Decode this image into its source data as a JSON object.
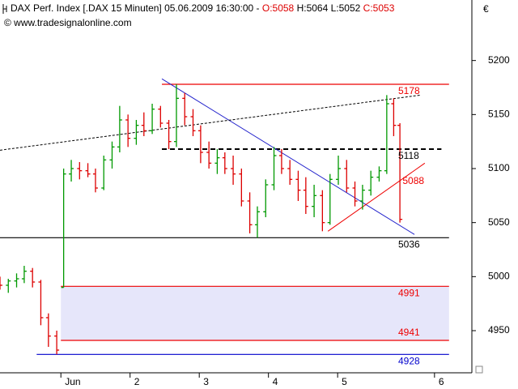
{
  "chart_data": {
    "type": "ohlc",
    "header": {
      "name": "DAX Perf. Index [.DAX  15 Minuten] 05.06.2009 16:30:00 - ",
      "open": "O:5058",
      "high": "H:5064",
      "low": "L:5052",
      "close": "C:5053"
    },
    "source": "© www.tradesignalonline.com",
    "currency": "€",
    "xlim": [
      0.12,
      6.94
    ],
    "xticks": [
      {
        "value": 1,
        "label": "Jun"
      },
      2,
      3,
      4,
      5,
      {
        "value": 6.4,
        "label": "6"
      }
    ],
    "ylim": [
      4911,
      5256
    ],
    "yticks": [
      4950,
      5000,
      5050,
      5100,
      5150,
      5200
    ],
    "up_color": "#009900",
    "down_color": "#dd0000",
    "x": [
      0.12,
      0.24,
      0.36,
      0.47,
      0.59,
      0.71,
      0.82,
      0.94,
      1.04,
      1.15,
      1.27,
      1.39,
      1.5,
      1.62,
      1.74,
      1.85,
      1.97,
      2.09,
      2.2,
      2.32,
      2.44,
      2.56,
      2.67,
      2.79,
      2.91,
      3.02,
      3.14,
      3.26,
      3.37,
      3.49,
      3.61,
      3.73,
      3.84,
      3.96,
      4.08,
      4.19,
      4.31,
      4.43,
      4.54,
      4.66,
      4.78,
      4.89,
      5.01,
      5.13,
      5.25,
      5.36,
      5.48,
      5.6,
      5.71,
      5.81,
      5.9
    ],
    "open": [
      4995,
      4992,
      4996,
      4998,
      5005,
      4995,
      4962,
      4945,
      4990,
      5095,
      5100,
      5098,
      5095,
      5082,
      5108,
      5120,
      5145,
      5128,
      5140,
      5135,
      5155,
      5142,
      5125,
      5165,
      5148,
      5135,
      5115,
      5105,
      5110,
      5100,
      5095,
      5070,
      5048,
      5060,
      5085,
      5112,
      5100,
      5090,
      5080,
      5065,
      5075,
      5050,
      5090,
      5100,
      5082,
      5070,
      5080,
      5092,
      5098,
      5160,
      5140
    ],
    "high": [
      5000,
      4998,
      5003,
      5010,
      5008,
      4997,
      4966,
      4950,
      5100,
      5108,
      5106,
      5105,
      5100,
      5112,
      5125,
      5158,
      5150,
      5145,
      5152,
      5160,
      5158,
      5145,
      5178,
      5170,
      5155,
      5140,
      5125,
      5118,
      5115,
      5112,
      5100,
      5078,
      5065,
      5090,
      5120,
      5118,
      5108,
      5098,
      5092,
      5085,
      5080,
      5095,
      5112,
      5108,
      5088,
      5085,
      5098,
      5102,
      5168,
      5165,
      5142
    ],
    "low": [
      4988,
      4985,
      4990,
      4994,
      4990,
      4955,
      4935,
      4928,
      4990,
      5088,
      5090,
      5092,
      5078,
      5080,
      5100,
      5115,
      5120,
      5122,
      5130,
      5132,
      5138,
      5118,
      5120,
      5140,
      5130,
      5105,
      5100,
      5095,
      5095,
      5085,
      5065,
      5040,
      5036,
      5055,
      5080,
      5095,
      5085,
      5070,
      5058,
      5055,
      5042,
      5048,
      5085,
      5078,
      5065,
      5062,
      5075,
      5088,
      5095,
      5130,
      5050
    ],
    "close": [
      4992,
      4996,
      4998,
      5005,
      4995,
      4962,
      4945,
      4932,
      5095,
      5100,
      5098,
      5095,
      5082,
      5108,
      5120,
      5145,
      5128,
      5140,
      5135,
      5155,
      5142,
      5125,
      5165,
      5148,
      5135,
      5115,
      5105,
      5110,
      5100,
      5095,
      5070,
      5048,
      5060,
      5085,
      5112,
      5100,
      5090,
      5080,
      5065,
      5075,
      5050,
      5090,
      5100,
      5082,
      5070,
      5080,
      5092,
      5098,
      5160,
      5140,
      5053
    ],
    "band": {
      "x": [
        1,
        6.61
      ],
      "y": [
        4941,
        4991
      ],
      "color": "#e6e6fa"
    },
    "levels": [
      {
        "value": 5178,
        "x": [
          2.46,
          6.61
        ],
        "color": "#ee0000",
        "dashed": false
      },
      {
        "value": 5118,
        "x": [
          2.46,
          6.5
        ],
        "color": "#000000",
        "dashed": true
      },
      {
        "value": 5036,
        "x": [
          0.12,
          6.61
        ],
        "color": "#000000",
        "dashed": false
      },
      {
        "value": 4991,
        "x": [
          1,
          6.61
        ],
        "color": "#ee0000",
        "dashed": false
      },
      {
        "value": 4941,
        "x": [
          1,
          6.61
        ],
        "color": "#ee0000",
        "dashed": false
      },
      {
        "value": 4928,
        "x": [
          0.65,
          6.61
        ],
        "color": "#0000cc",
        "dashed": false
      }
    ],
    "trendlines": [
      {
        "x": [
          2.46,
          6.11
        ],
        "y": [
          5183,
          5039
        ],
        "color": "#2222cc",
        "dashed": false
      },
      {
        "x": [
          0.12,
          6.2
        ],
        "y": [
          5117,
          5168
        ],
        "color": "#000000",
        "dashed": true
      },
      {
        "x": [
          4.86,
          6.26
        ],
        "y": [
          5042,
          5105
        ],
        "color": "#ee0000",
        "dashed": false
      }
    ],
    "annotation": {
      "value": 5088,
      "x": 5.88,
      "color": "#ee0000"
    }
  }
}
